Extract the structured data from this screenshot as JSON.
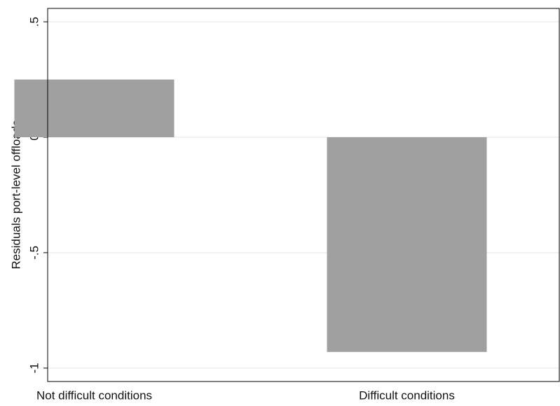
{
  "chart_data": {
    "type": "bar",
    "y_label": "Residuals port-level offloads",
    "categories": [
      "Not difficult conditions",
      "Difficult conditions"
    ],
    "values": [
      0.25,
      -0.93
    ],
    "color": "#a0a0a0",
    "ylim": [
      -1.058,
      0.558
    ],
    "yticks": [
      {
        "value": 0.5,
        "label": ".5"
      },
      0,
      {
        "value": -0.5,
        "label": "-.5"
      },
      -1
    ],
    "grid": true
  }
}
